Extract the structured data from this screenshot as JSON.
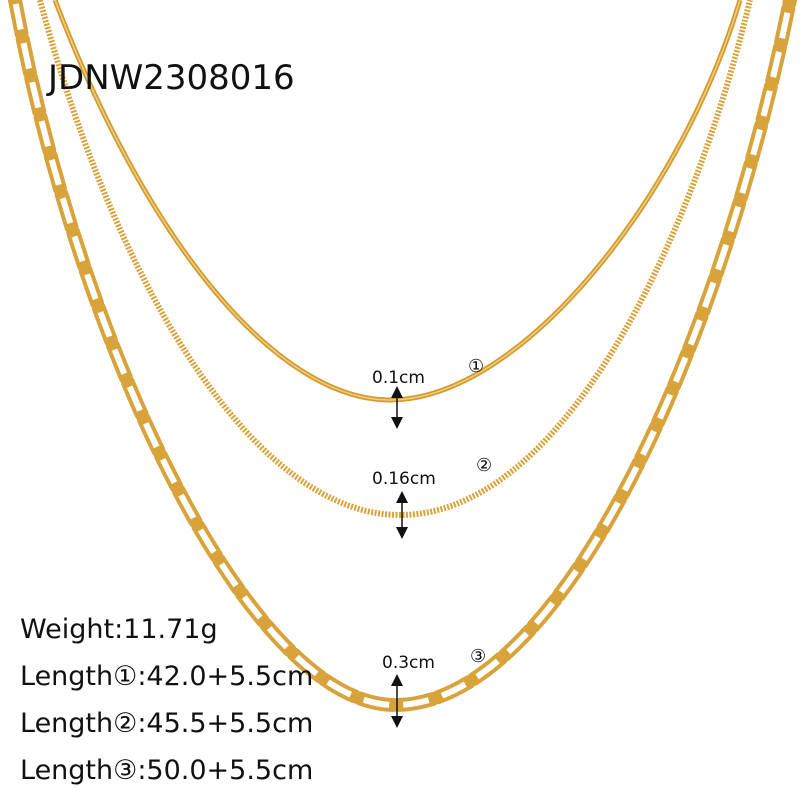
{
  "product_code": "JDNW2308016",
  "colors": {
    "gold": "#d9a33c",
    "gold_light": "#f1cf7a",
    "text": "#111111"
  },
  "chains": [
    {
      "index": "①",
      "width": "0.1cm",
      "style": "snake chain"
    },
    {
      "index": "②",
      "width": "0.16cm",
      "style": "twisted chain"
    },
    {
      "index": "③",
      "width": "0.3cm",
      "style": "paperclip chain"
    }
  ],
  "specs": {
    "weight": "Weight:11.71g",
    "length1": "Length①:42.0+5.5cm",
    "length2": "Length②:45.5+5.5cm",
    "length3": "Length③:50.0+5.5cm"
  }
}
